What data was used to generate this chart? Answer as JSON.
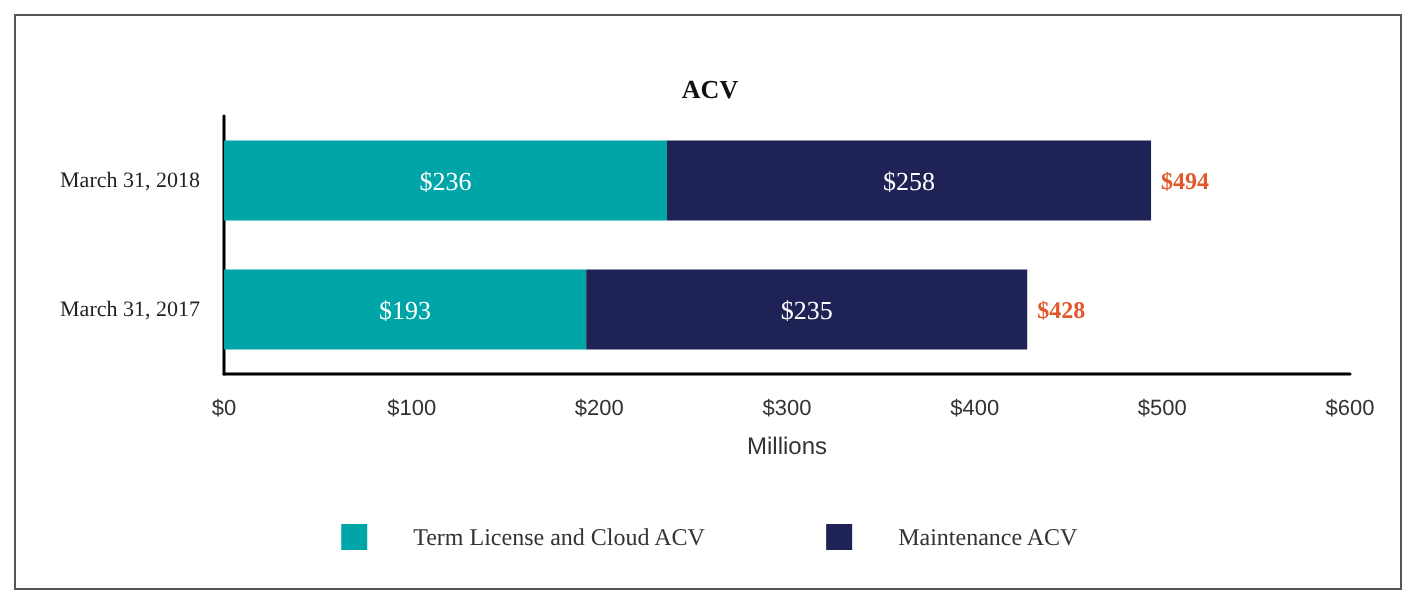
{
  "chart_data": {
    "type": "bar",
    "title": "ACV",
    "orientation": "horizontal",
    "stacked": true,
    "categories": [
      "March 31, 2018",
      "March 31, 2017"
    ],
    "series": [
      {
        "name": "Term License and Cloud ACV",
        "color": "#00a5a8",
        "values": [
          236,
          193
        ],
        "value_labels": [
          "$236",
          "$193"
        ]
      },
      {
        "name": "Maintenance ACV",
        "color": "#1e2254",
        "values": [
          258,
          235
        ],
        "value_labels": [
          "$258",
          "$235"
        ]
      }
    ],
    "totals": [
      "$494",
      "$428"
    ],
    "xlabel": "Millions",
    "xlim": [
      0,
      600
    ],
    "xticks": [
      {
        "value": 0,
        "label": "$0"
      },
      {
        "value": 100,
        "label": "$100"
      },
      {
        "value": 200,
        "label": "$200"
      },
      {
        "value": 300,
        "label": "$300"
      },
      {
        "value": 400,
        "label": "$400"
      },
      {
        "value": 500,
        "label": "$500"
      },
      {
        "value": 600,
        "label": "$600"
      }
    ],
    "grid": false,
    "legend": "bottom"
  }
}
